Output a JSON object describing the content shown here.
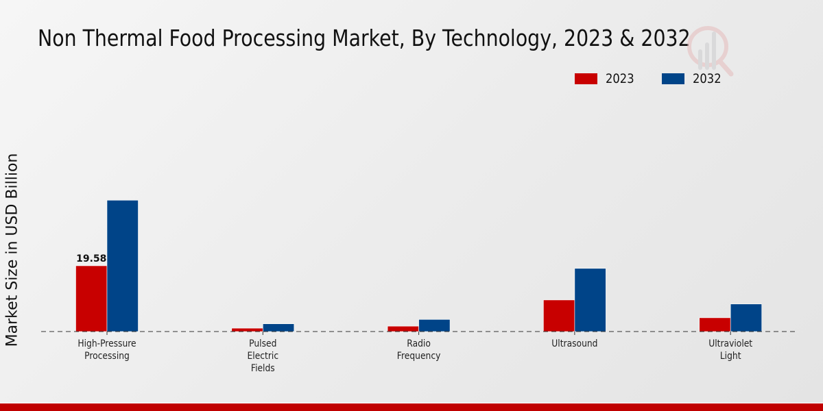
{
  "chart_data": {
    "type": "bar",
    "title": "Non Thermal Food Processing Market, By Technology, 2023 & 2032",
    "xlabel": "",
    "ylabel": "Market Size in USD Billion",
    "categories": [
      [
        "High-Pressure",
        "Processing"
      ],
      [
        "Pulsed",
        "Electric",
        "Fields"
      ],
      [
        "Radio",
        "Frequency"
      ],
      [
        "Ultrasound"
      ],
      [
        "Ultraviolet",
        "Light"
      ]
    ],
    "series": [
      {
        "name": "2023",
        "color": "#c80000",
        "values": [
          19.58,
          1.0,
          1.6,
          9.4,
          4.1
        ]
      },
      {
        "name": "2032",
        "color": "#004488",
        "values": [
          39.1,
          2.3,
          3.6,
          18.8,
          8.2
        ]
      }
    ],
    "data_labels": [
      {
        "series": 0,
        "index": 0,
        "text": "19.58"
      }
    ],
    "ylim": [
      0,
      45
    ],
    "grid": false,
    "baseline_style": "dashed",
    "legend": {
      "position": "top-right",
      "entries": [
        "2023",
        "2032"
      ]
    }
  },
  "branding": {
    "accent_bar_color": "#c00000",
    "watermark": "logo-icon"
  }
}
